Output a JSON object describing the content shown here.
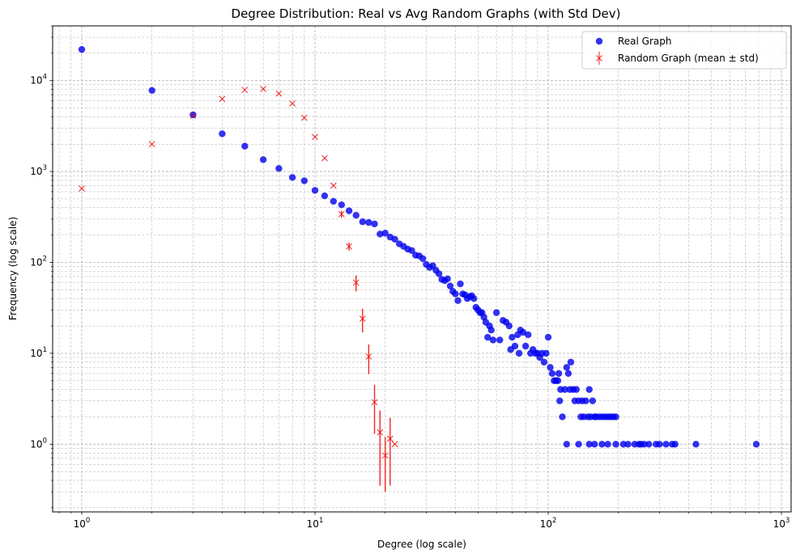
{
  "chart_data": {
    "type": "scatter",
    "title": "Degree Distribution: Real vs Avg Random Graphs (with Std Dev)",
    "xlabel": "Degree (log scale)",
    "ylabel": "Frequency (log scale)",
    "xscale": "log",
    "yscale": "log",
    "xlim": [
      0.75,
      1100
    ],
    "ylim": [
      0.18,
      40000
    ],
    "grid": true,
    "legend_position": "top-right",
    "x_ticks": [
      {
        "value": 1,
        "base": "10",
        "exp": "0"
      },
      {
        "value": 10,
        "base": "10",
        "exp": "1"
      },
      {
        "value": 100,
        "base": "10",
        "exp": "2"
      },
      {
        "value": 1000,
        "base": "10",
        "exp": "3"
      }
    ],
    "y_ticks": [
      {
        "value": 1,
        "base": "10",
        "exp": "0"
      },
      {
        "value": 10,
        "base": "10",
        "exp": "1"
      },
      {
        "value": 100,
        "base": "10",
        "exp": "2"
      },
      {
        "value": 1000,
        "base": "10",
        "exp": "3"
      },
      {
        "value": 10000,
        "base": "10",
        "exp": "4"
      }
    ],
    "series": [
      {
        "name": "Real Graph",
        "color": "#0000ee",
        "marker": "circle",
        "points": [
          [
            1,
            22000
          ],
          [
            2,
            7800
          ],
          [
            3,
            4200
          ],
          [
            4,
            2600
          ],
          [
            5,
            1900
          ],
          [
            6,
            1350
          ],
          [
            7,
            1080
          ],
          [
            8,
            860
          ],
          [
            9,
            790
          ],
          [
            10,
            620
          ],
          [
            11,
            540
          ],
          [
            12,
            470
          ],
          [
            13,
            430
          ],
          [
            14,
            370
          ],
          [
            15,
            330
          ],
          [
            16,
            280
          ],
          [
            17,
            275
          ],
          [
            18,
            265
          ],
          [
            19,
            205
          ],
          [
            20,
            210
          ],
          [
            21,
            190
          ],
          [
            22,
            180
          ],
          [
            23,
            160
          ],
          [
            24,
            150
          ],
          [
            25,
            140
          ],
          [
            26,
            135
          ],
          [
            27,
            120
          ],
          [
            28,
            118
          ],
          [
            29,
            110
          ],
          [
            30,
            95
          ],
          [
            31,
            88
          ],
          [
            32,
            92
          ],
          [
            33,
            82
          ],
          [
            34,
            75
          ],
          [
            35,
            65
          ],
          [
            36,
            63
          ],
          [
            37,
            66
          ],
          [
            38,
            55
          ],
          [
            39,
            48
          ],
          [
            40,
            45
          ],
          [
            41,
            38
          ],
          [
            42,
            58
          ],
          [
            43,
            45
          ],
          [
            44,
            44
          ],
          [
            45,
            40
          ],
          [
            46,
            42
          ],
          [
            47,
            43
          ],
          [
            48,
            40
          ],
          [
            49,
            32
          ],
          [
            50,
            30
          ],
          [
            51,
            28
          ],
          [
            52,
            28
          ],
          [
            53,
            25
          ],
          [
            54,
            22
          ],
          [
            55,
            15
          ],
          [
            56,
            20
          ],
          [
            57,
            18
          ],
          [
            58,
            14
          ],
          [
            60,
            28
          ],
          [
            62,
            14
          ],
          [
            64,
            23
          ],
          [
            66,
            22
          ],
          [
            68,
            20
          ],
          [
            69,
            11
          ],
          [
            70,
            15
          ],
          [
            72,
            12
          ],
          [
            74,
            16
          ],
          [
            75,
            10
          ],
          [
            76,
            18
          ],
          [
            78,
            17
          ],
          [
            80,
            12
          ],
          [
            82,
            16
          ],
          [
            84,
            10
          ],
          [
            86,
            11
          ],
          [
            88,
            10
          ],
          [
            90,
            10
          ],
          [
            92,
            9
          ],
          [
            94,
            10
          ],
          [
            96,
            8
          ],
          [
            98,
            10
          ],
          [
            100,
            15
          ],
          [
            102,
            7
          ],
          [
            104,
            6
          ],
          [
            106,
            5
          ],
          [
            108,
            5
          ],
          [
            110,
            5
          ],
          [
            111,
            6
          ],
          [
            112,
            3
          ],
          [
            113,
            4
          ],
          [
            115,
            2
          ],
          [
            118,
            4
          ],
          [
            120,
            7
          ],
          [
            122,
            6
          ],
          [
            124,
            4
          ],
          [
            125,
            8
          ],
          [
            128,
            4
          ],
          [
            130,
            3
          ],
          [
            132,
            4
          ],
          [
            135,
            3
          ],
          [
            138,
            2
          ],
          [
            140,
            3
          ],
          [
            142,
            2
          ],
          [
            145,
            3
          ],
          [
            148,
            2
          ],
          [
            150,
            4
          ],
          [
            152,
            2
          ],
          [
            155,
            3
          ],
          [
            158,
            2
          ],
          [
            160,
            2
          ],
          [
            165,
            2
          ],
          [
            170,
            2
          ],
          [
            175,
            2
          ],
          [
            180,
            2
          ],
          [
            185,
            2
          ],
          [
            190,
            2
          ],
          [
            195,
            2
          ],
          [
            120,
            1
          ],
          [
            135,
            1
          ],
          [
            150,
            1
          ],
          [
            158,
            1
          ],
          [
            170,
            1
          ],
          [
            180,
            1
          ],
          [
            195,
            1
          ],
          [
            210,
            1
          ],
          [
            220,
            1
          ],
          [
            235,
            1
          ],
          [
            245,
            1
          ],
          [
            250,
            1
          ],
          [
            258,
            1
          ],
          [
            270,
            1
          ],
          [
            290,
            1
          ],
          [
            300,
            1
          ],
          [
            320,
            1
          ],
          [
            340,
            1
          ],
          [
            350,
            1
          ],
          [
            430,
            1
          ],
          [
            780,
            1
          ]
        ]
      },
      {
        "name": "Random Graph (mean ± std)",
        "color": "#ee0000",
        "marker": "x",
        "points": [
          {
            "x": 1,
            "y": 650,
            "std": 0
          },
          {
            "x": 2,
            "y": 2000,
            "std": 0
          },
          {
            "x": 3,
            "y": 4100,
            "std": 0
          },
          {
            "x": 4,
            "y": 6300,
            "std": 0
          },
          {
            "x": 5,
            "y": 7900,
            "std": 0
          },
          {
            "x": 6,
            "y": 8100,
            "std": 0
          },
          {
            "x": 7,
            "y": 7200,
            "std": 0
          },
          {
            "x": 8,
            "y": 5600,
            "std": 0
          },
          {
            "x": 9,
            "y": 3900,
            "std": 0
          },
          {
            "x": 10,
            "y": 2400,
            "std": 0
          },
          {
            "x": 11,
            "y": 1400,
            "std": 0
          },
          {
            "x": 12,
            "y": 700,
            "std": 0
          },
          {
            "x": 13,
            "y": 340,
            "std": 30
          },
          {
            "x": 14,
            "y": 150,
            "std": 15
          },
          {
            "x": 15,
            "y": 60,
            "std": 12
          },
          {
            "x": 16,
            "y": 24,
            "std": 7
          },
          {
            "x": 17,
            "y": 9.2,
            "std": 3.3
          },
          {
            "x": 18,
            "y": 2.9,
            "std": 1.6
          },
          {
            "x": 19,
            "y": 1.35,
            "std": 1.0
          },
          {
            "x": 20,
            "y": 0.75,
            "std": 0.45
          },
          {
            "x": 21,
            "y": 1.15,
            "std": 0.8
          },
          {
            "x": 22,
            "y": 1.0,
            "std": 0
          }
        ]
      }
    ]
  }
}
